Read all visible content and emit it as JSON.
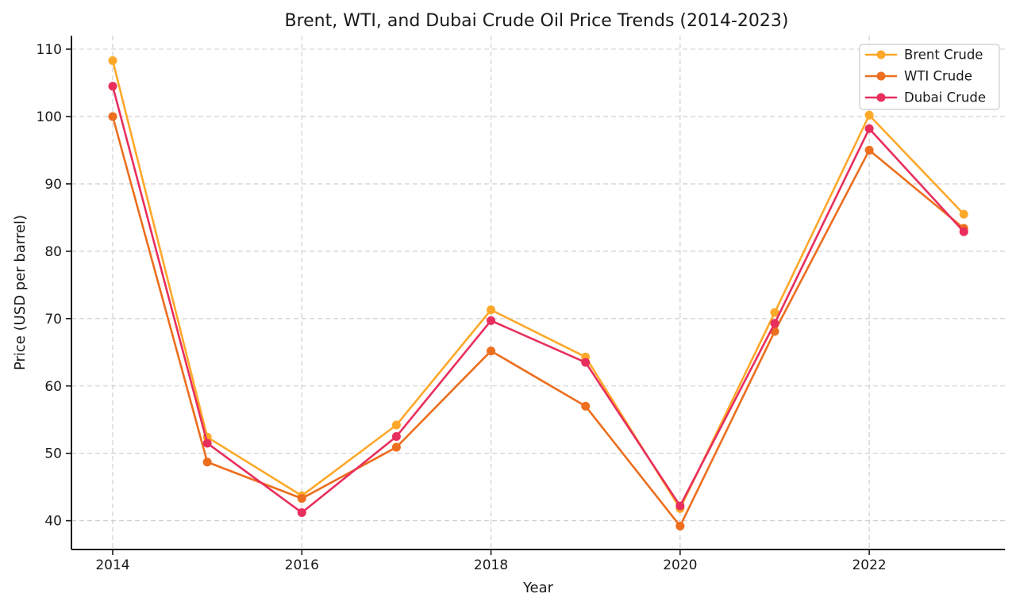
{
  "chart_data": {
    "type": "line",
    "title": "Brent, WTI, and Dubai Crude Oil Price Trends (2014-2023)",
    "xlabel": "Year",
    "ylabel": "Price (USD per barrel)",
    "x": [
      2014,
      2015,
      2016,
      2017,
      2018,
      2019,
      2020,
      2021,
      2022,
      2023
    ],
    "series": [
      {
        "name": "Brent Crude",
        "color": "#FDA829",
        "values": [
          108.3,
          52.4,
          43.7,
          54.2,
          71.3,
          64.3,
          41.8,
          70.9,
          100.2,
          85.5
        ]
      },
      {
        "name": "WTI Crude",
        "color": "#EC6E1E",
        "values": [
          100.0,
          48.7,
          43.3,
          50.9,
          65.2,
          57.0,
          39.2,
          68.1,
          95.0,
          83.4
        ]
      },
      {
        "name": "Dubai Crude",
        "color": "#E82E5D",
        "values": [
          104.5,
          51.5,
          41.2,
          52.5,
          69.7,
          63.5,
          42.2,
          69.3,
          98.2,
          82.9
        ]
      }
    ],
    "x_ticks": [
      2014,
      2016,
      2018,
      2020,
      2022
    ],
    "y_ticks": [
      40,
      50,
      60,
      70,
      80,
      90,
      100,
      110
    ],
    "xlim": [
      2013.56,
      2023.44
    ],
    "ylim": [
      36,
      112
    ],
    "grid": true,
    "legend_position": "upper right",
    "colors": {
      "grid": "#cccccc",
      "axis": "#1a1a1a",
      "background": "#ffffff"
    }
  }
}
